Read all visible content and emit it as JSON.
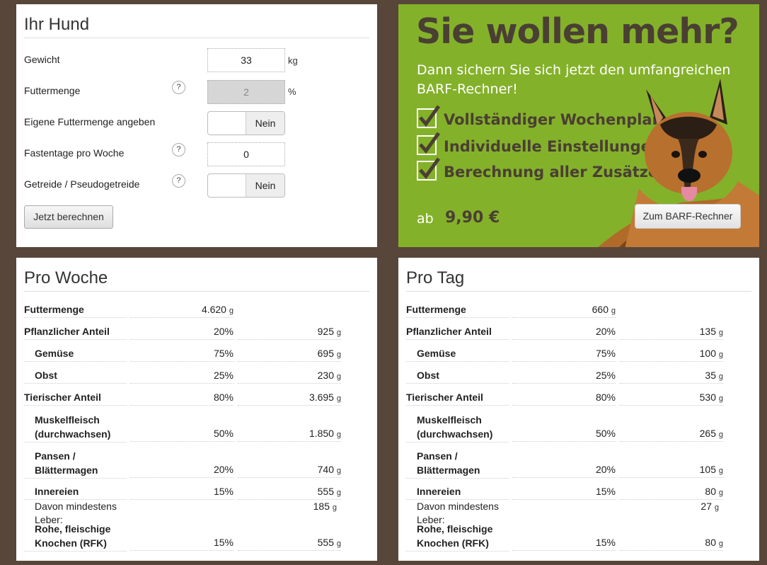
{
  "form": {
    "title": "Ihr Hund",
    "weight_label": "Gewicht",
    "weight_value": "33",
    "weight_unit": "kg",
    "amount_label": "Futtermenge",
    "amount_value": "2",
    "amount_unit": "%",
    "own_amount_label": "Eigene Futtermenge angeben",
    "own_amount_toggle": "Nein",
    "fast_label": "Fastentage pro Woche",
    "fast_value": "0",
    "grain_label": "Getreide / Pseudogetreide",
    "grain_toggle": "Nein",
    "help_glyph": "?",
    "calc_button": "Jetzt berechnen"
  },
  "ad": {
    "title": "Sie wollen mehr?",
    "subtitle": "Dann sichern Sie sich jetzt den umfangreichen BARF-Rechner!",
    "features": [
      "Vollständiger Wochenplan",
      "Individuelle Einstellungen",
      "Berechnung aller Zusätze"
    ],
    "price_prefix": "ab",
    "price": "9,90 €",
    "button": "Zum BARF-Rechner",
    "accent_color": "#84b12a"
  },
  "unit_g": "g",
  "week": {
    "title": "Pro Woche",
    "rows": [
      {
        "label": "Futtermenge",
        "pct": "4.620",
        "val": ""
      },
      {
        "label": "Pflanzlicher Anteil",
        "pct": "20%",
        "val": "925"
      },
      {
        "label": "Gemüse",
        "pct": "75%",
        "val": "695"
      },
      {
        "label": "Obst",
        "pct": "25%",
        "val": "230"
      },
      {
        "label": "Tierischer Anteil",
        "pct": "80%",
        "val": "3.695"
      },
      {
        "label1": "Muskelfleisch",
        "label2": "(durchwachsen)",
        "pct": "50%",
        "val": "1.850"
      },
      {
        "label1": "Pansen /",
        "label2": "Blättermagen",
        "pct": "20%",
        "val": "740"
      },
      {
        "label": "Innereien",
        "pct": "15%",
        "val": "555"
      },
      {
        "label": "Davon mindestens Leber:",
        "pct": "",
        "val": "185"
      },
      {
        "label1": "Rohe, fleischige",
        "label2": "Knochen (RFK)",
        "pct": "15%",
        "val": "555"
      }
    ]
  },
  "day": {
    "title": "Pro Tag",
    "rows": [
      {
        "label": "Futtermenge",
        "pct": "660",
        "val": ""
      },
      {
        "label": "Pflanzlicher Anteil",
        "pct": "20%",
        "val": "135"
      },
      {
        "label": "Gemüse",
        "pct": "75%",
        "val": "100"
      },
      {
        "label": "Obst",
        "pct": "25%",
        "val": "35"
      },
      {
        "label": "Tierischer Anteil",
        "pct": "80%",
        "val": "530"
      },
      {
        "label1": "Muskelfleisch",
        "label2": "(durchwachsen)",
        "pct": "50%",
        "val": "265"
      },
      {
        "label1": "Pansen /",
        "label2": "Blättermagen",
        "pct": "20%",
        "val": "105"
      },
      {
        "label": "Innereien",
        "pct": "15%",
        "val": "80"
      },
      {
        "label": "Davon mindestens Leber:",
        "pct": "",
        "val": "27"
      },
      {
        "label1": "Rohe, fleischige",
        "label2": "Knochen (RFK)",
        "pct": "15%",
        "val": "80"
      }
    ]
  }
}
